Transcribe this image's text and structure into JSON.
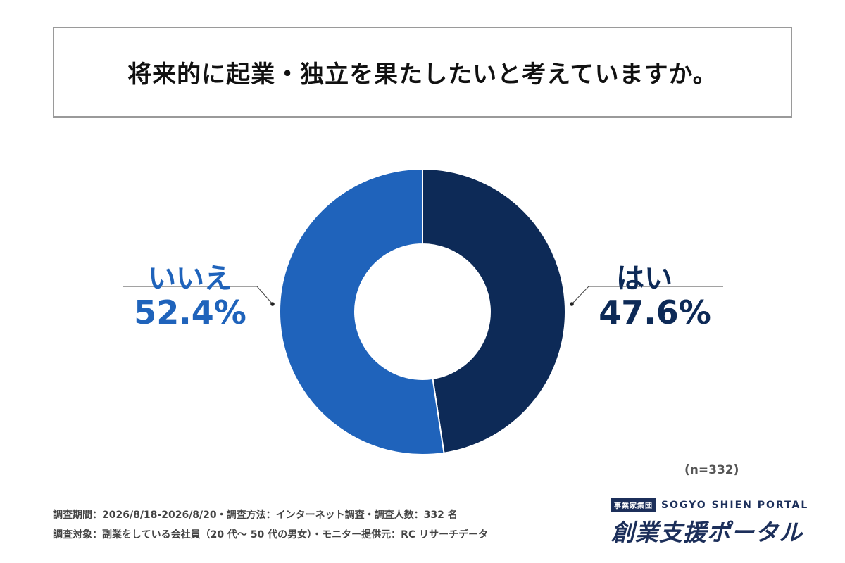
{
  "title": "将来的に起業・独立を果たしたいと考えていますか。",
  "chart_data": {
    "type": "pie",
    "title": "将来的に起業・独立を果たしたいと考えていますか。",
    "categories": [
      "はい",
      "いいえ"
    ],
    "values": [
      47.6,
      52.4
    ],
    "labels": [
      "47.6%",
      "52.4%"
    ],
    "colors": [
      "#0d2a57",
      "#1f63bb"
    ],
    "donut": true,
    "sample_note": "(n=332)"
  },
  "footer": {
    "line1": "調査期間：2026/8/18-2026/8/20・調査方法：インターネット調査・調査人数：332 名",
    "line2": "調査対象：副業をしている会社員（20 代〜 50 代の男女）・モニター提供元：RC リサーチデータ"
  },
  "brand": {
    "tag": "事業家集団",
    "en": "SOGYO SHIEN PORTAL",
    "name": "創業支援ポータル"
  }
}
